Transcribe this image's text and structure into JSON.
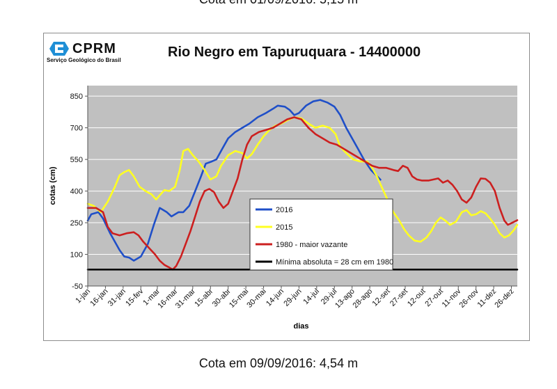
{
  "captions": {
    "top": "Cota em 01/09/2016: 5,15 m",
    "bottom": "Cota em 09/09/2016: 4,54 m"
  },
  "logo": {
    "name": "CPRM",
    "subtitle": "Serviço Geológico do Brasil"
  },
  "colors": {
    "plot_bg": "#c0c0c0",
    "grid": "#ffffff",
    "s2016": "#1f4fc8",
    "s2015": "#ffff22",
    "s1980": "#cc1f1f",
    "min_line": "#000000"
  },
  "chart_data": {
    "type": "line",
    "title": "Rio Negro em Tapuruquara -  14400000",
    "xlabel": "dias",
    "ylabel": "cotas (cm)",
    "ylim": [
      -50,
      900
    ],
    "yticks": [
      -50,
      100,
      250,
      400,
      550,
      700,
      850
    ],
    "xlim": [
      1,
      365
    ],
    "xticks": [
      {
        "day": 1,
        "label": "1-jan"
      },
      {
        "day": 16,
        "label": "16-jan"
      },
      {
        "day": 31,
        "label": "31-jan"
      },
      {
        "day": 46,
        "label": "15-fev"
      },
      {
        "day": 60,
        "label": "1-mar"
      },
      {
        "day": 75,
        "label": "16-mar"
      },
      {
        "day": 90,
        "label": "31-mar"
      },
      {
        "day": 105,
        "label": "15-abr"
      },
      {
        "day": 120,
        "label": "30-abr"
      },
      {
        "day": 135,
        "label": "15-mai"
      },
      {
        "day": 150,
        "label": "30-mai"
      },
      {
        "day": 165,
        "label": "14-jun"
      },
      {
        "day": 180,
        "label": "29-jun"
      },
      {
        "day": 195,
        "label": "14-jul"
      },
      {
        "day": 210,
        "label": "29-jul"
      },
      {
        "day": 225,
        "label": "13-ago"
      },
      {
        "day": 240,
        "label": "28-ago"
      },
      {
        "day": 255,
        "label": "12-set"
      },
      {
        "day": 270,
        "label": "27-set"
      },
      {
        "day": 285,
        "label": "12-out"
      },
      {
        "day": 300,
        "label": "27-out"
      },
      {
        "day": 315,
        "label": "11-nov"
      },
      {
        "day": 330,
        "label": "26-nov"
      },
      {
        "day": 345,
        "label": "11-dez"
      },
      {
        "day": 360,
        "label": "26-dez"
      }
    ],
    "grid": "horizontal",
    "legend_position": "center-bottom",
    "series": [
      {
        "name": "2016",
        "color": "#1f4fc8",
        "points": [
          [
            1,
            260
          ],
          [
            4,
            290
          ],
          [
            10,
            300
          ],
          [
            14,
            270
          ],
          [
            20,
            200
          ],
          [
            28,
            120
          ],
          [
            32,
            90
          ],
          [
            36,
            85
          ],
          [
            40,
            70
          ],
          [
            46,
            90
          ],
          [
            52,
            150
          ],
          [
            57,
            240
          ],
          [
            62,
            320
          ],
          [
            68,
            300
          ],
          [
            72,
            280
          ],
          [
            78,
            300
          ],
          [
            82,
            300
          ],
          [
            87,
            330
          ],
          [
            92,
            400
          ],
          [
            97,
            470
          ],
          [
            101,
            530
          ],
          [
            106,
            540
          ],
          [
            110,
            550
          ],
          [
            115,
            600
          ],
          [
            120,
            650
          ],
          [
            126,
            680
          ],
          [
            132,
            700
          ],
          [
            138,
            720
          ],
          [
            145,
            750
          ],
          [
            152,
            770
          ],
          [
            158,
            790
          ],
          [
            162,
            805
          ],
          [
            168,
            800
          ],
          [
            172,
            785
          ],
          [
            176,
            760
          ],
          [
            180,
            770
          ],
          [
            186,
            805
          ],
          [
            192,
            825
          ],
          [
            198,
            832
          ],
          [
            204,
            820
          ],
          [
            210,
            800
          ],
          [
            215,
            760
          ],
          [
            220,
            700
          ],
          [
            226,
            640
          ],
          [
            230,
            600
          ],
          [
            235,
            550
          ],
          [
            241,
            500
          ],
          [
            249,
            454
          ]
        ]
      },
      {
        "name": "2015",
        "color": "#ffff22",
        "points": [
          [
            1,
            340
          ],
          [
            6,
            330
          ],
          [
            12,
            300
          ],
          [
            18,
            350
          ],
          [
            24,
            420
          ],
          [
            28,
            475
          ],
          [
            32,
            490
          ],
          [
            36,
            500
          ],
          [
            40,
            470
          ],
          [
            45,
            420
          ],
          [
            50,
            400
          ],
          [
            55,
            385
          ],
          [
            59,
            360
          ],
          [
            62,
            380
          ],
          [
            66,
            405
          ],
          [
            70,
            400
          ],
          [
            75,
            420
          ],
          [
            79,
            500
          ],
          [
            82,
            590
          ],
          [
            86,
            600
          ],
          [
            90,
            570
          ],
          [
            95,
            540
          ],
          [
            100,
            500
          ],
          [
            105,
            455
          ],
          [
            110,
            470
          ],
          [
            114,
            520
          ],
          [
            120,
            570
          ],
          [
            126,
            590
          ],
          [
            132,
            580
          ],
          [
            136,
            555
          ],
          [
            140,
            575
          ],
          [
            145,
            620
          ],
          [
            150,
            660
          ],
          [
            155,
            690
          ],
          [
            160,
            710
          ],
          [
            165,
            720
          ],
          [
            170,
            735
          ],
          [
            176,
            750
          ],
          [
            182,
            745
          ],
          [
            188,
            720
          ],
          [
            194,
            700
          ],
          [
            200,
            710
          ],
          [
            206,
            700
          ],
          [
            211,
            670
          ],
          [
            215,
            610
          ],
          [
            220,
            580
          ],
          [
            226,
            550
          ],
          [
            232,
            540
          ],
          [
            238,
            540
          ],
          [
            242,
            510
          ],
          [
            246,
            470
          ],
          [
            250,
            420
          ],
          [
            255,
            360
          ],
          [
            260,
            300
          ],
          [
            265,
            260
          ],
          [
            269,
            220
          ],
          [
            273,
            190
          ],
          [
            278,
            165
          ],
          [
            283,
            160
          ],
          [
            288,
            180
          ],
          [
            292,
            210
          ],
          [
            296,
            250
          ],
          [
            300,
            275
          ],
          [
            304,
            260
          ],
          [
            308,
            240
          ],
          [
            313,
            255
          ],
          [
            318,
            300
          ],
          [
            322,
            310
          ],
          [
            326,
            285
          ],
          [
            330,
            290
          ],
          [
            334,
            305
          ],
          [
            338,
            295
          ],
          [
            342,
            270
          ],
          [
            346,
            240
          ],
          [
            350,
            200
          ],
          [
            354,
            180
          ],
          [
            358,
            190
          ],
          [
            362,
            215
          ],
          [
            365,
            240
          ]
        ]
      },
      {
        "name": "1980 - maior vazante",
        "color": "#cc1f1f",
        "points": [
          [
            1,
            320
          ],
          [
            8,
            320
          ],
          [
            14,
            300
          ],
          [
            18,
            230
          ],
          [
            22,
            200
          ],
          [
            28,
            190
          ],
          [
            34,
            200
          ],
          [
            40,
            205
          ],
          [
            44,
            190
          ],
          [
            48,
            160
          ],
          [
            53,
            130
          ],
          [
            58,
            100
          ],
          [
            62,
            70
          ],
          [
            66,
            50
          ],
          [
            70,
            38
          ],
          [
            73,
            28
          ],
          [
            76,
            45
          ],
          [
            80,
            90
          ],
          [
            84,
            150
          ],
          [
            88,
            210
          ],
          [
            92,
            280
          ],
          [
            96,
            350
          ],
          [
            100,
            400
          ],
          [
            104,
            410
          ],
          [
            108,
            395
          ],
          [
            112,
            350
          ],
          [
            116,
            320
          ],
          [
            120,
            340
          ],
          [
            124,
            400
          ],
          [
            128,
            460
          ],
          [
            132,
            550
          ],
          [
            136,
            620
          ],
          [
            140,
            660
          ],
          [
            146,
            680
          ],
          [
            152,
            690
          ],
          [
            158,
            700
          ],
          [
            164,
            720
          ],
          [
            170,
            740
          ],
          [
            176,
            750
          ],
          [
            182,
            740
          ],
          [
            188,
            700
          ],
          [
            194,
            670
          ],
          [
            200,
            650
          ],
          [
            206,
            630
          ],
          [
            212,
            620
          ],
          [
            218,
            600
          ],
          [
            224,
            580
          ],
          [
            230,
            560
          ],
          [
            236,
            540
          ],
          [
            242,
            520
          ],
          [
            248,
            510
          ],
          [
            254,
            510
          ],
          [
            260,
            500
          ],
          [
            264,
            495
          ],
          [
            268,
            520
          ],
          [
            272,
            510
          ],
          [
            276,
            470
          ],
          [
            280,
            455
          ],
          [
            284,
            450
          ],
          [
            290,
            450
          ],
          [
            294,
            455
          ],
          [
            298,
            460
          ],
          [
            302,
            440
          ],
          [
            306,
            450
          ],
          [
            310,
            430
          ],
          [
            314,
            400
          ],
          [
            318,
            360
          ],
          [
            322,
            345
          ],
          [
            326,
            370
          ],
          [
            330,
            420
          ],
          [
            334,
            460
          ],
          [
            338,
            458
          ],
          [
            342,
            440
          ],
          [
            346,
            400
          ],
          [
            350,
            320
          ],
          [
            354,
            260
          ],
          [
            357,
            240
          ],
          [
            360,
            248
          ],
          [
            365,
            262
          ]
        ]
      },
      {
        "name": "Mínima absoluta = 28 cm em 1980",
        "color": "#000000",
        "points": [
          [
            1,
            28
          ],
          [
            365,
            28
          ]
        ]
      }
    ]
  }
}
